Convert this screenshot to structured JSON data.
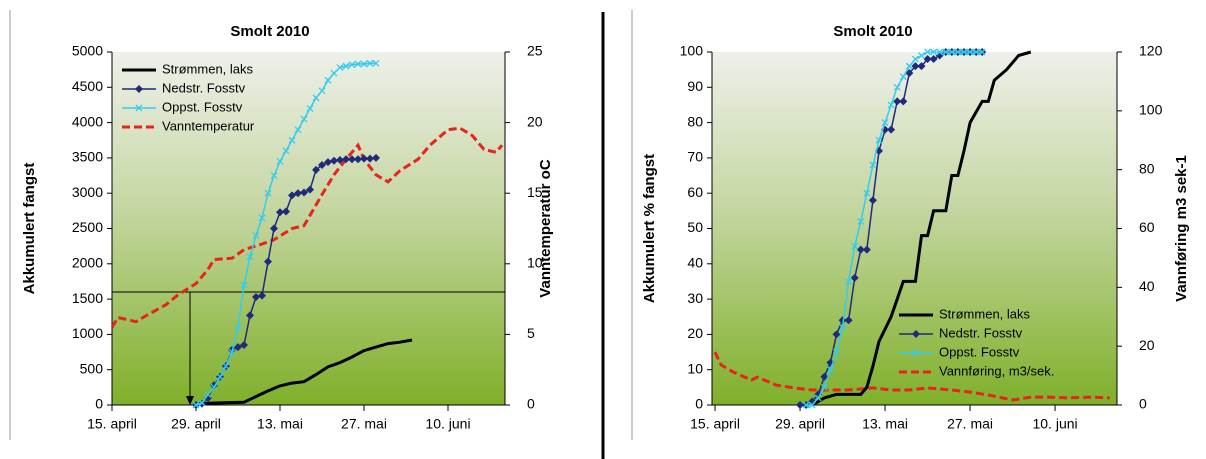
{
  "chart_data": [
    {
      "type": "line",
      "title": "Smolt 2010",
      "ylabel": "Akkumulert fangst",
      "y2label": "Vanntemperatur oC",
      "xlim": [
        0,
        65.5
      ],
      "xticks": [
        {
          "value": 0,
          "label": "15. april"
        },
        {
          "value": 14,
          "label": "29. april"
        },
        {
          "value": 28,
          "label": "13. mai"
        },
        {
          "value": 42,
          "label": "27. mai"
        },
        {
          "value": 56,
          "label": "10. juni"
        }
      ],
      "ylim": [
        0,
        5000
      ],
      "yticks": [
        0,
        500,
        1000,
        1500,
        2000,
        2500,
        3000,
        3500,
        4000,
        4500,
        5000
      ],
      "y2lim": [
        0,
        25
      ],
      "y2ticks": [
        0,
        5,
        10,
        15,
        20,
        25
      ],
      "legend": "upper left",
      "reference_y2": 8,
      "reference_x": 13,
      "series": [
        {
          "name": "Strømmen, laks",
          "color": "#000000",
          "linewidth": 3,
          "marker": "none",
          "dashed": false,
          "x": [
            14,
            18,
            22,
            24,
            26,
            28,
            30,
            32,
            34,
            36,
            38,
            40,
            42,
            44,
            46,
            48,
            50
          ],
          "values": [
            20,
            30,
            40,
            120,
            200,
            270,
            310,
            330,
            430,
            540,
            600,
            680,
            770,
            820,
            870,
            890,
            920
          ]
        },
        {
          "name": "Nedstr. Fosstv",
          "color": "#1f2a7a",
          "linewidth": 1.5,
          "marker": "diamond",
          "dashed": false,
          "x": [
            14,
            15,
            16,
            17,
            18,
            19,
            20,
            21,
            22,
            23,
            24,
            25,
            26,
            27,
            28,
            29,
            30,
            31,
            32,
            33,
            34,
            35,
            36,
            37,
            38,
            39,
            40,
            41,
            42,
            43,
            44
          ],
          "values": [
            0,
            20,
            100,
            280,
            400,
            550,
            780,
            820,
            850,
            1270,
            1530,
            1550,
            2030,
            2500,
            2730,
            2740,
            2970,
            3000,
            3010,
            3050,
            3330,
            3400,
            3440,
            3460,
            3470,
            3480,
            3480,
            3480,
            3490,
            3490,
            3500
          ]
        },
        {
          "name": "Oppst. Fosstv",
          "color": "#33ccee",
          "linewidth": 1.5,
          "marker": "x",
          "dashed": false,
          "x": [
            14,
            15,
            16,
            17,
            18,
            19,
            20,
            21,
            22,
            23,
            24,
            25,
            26,
            27,
            28,
            29,
            30,
            31,
            32,
            33,
            34,
            35,
            36,
            37,
            38,
            39,
            40,
            41,
            42,
            43,
            44
          ],
          "values": [
            0,
            30,
            150,
            250,
            400,
            550,
            750,
            1100,
            1700,
            2100,
            2400,
            2650,
            3000,
            3250,
            3450,
            3600,
            3750,
            3900,
            4050,
            4200,
            4350,
            4450,
            4600,
            4700,
            4780,
            4800,
            4820,
            4830,
            4830,
            4840,
            4840
          ]
        },
        {
          "name": "Vanntemperatur",
          "color": "#e8231c",
          "linewidth": 3,
          "marker": "none",
          "dashed": true,
          "axis": "y2",
          "x": [
            0,
            1,
            4,
            6,
            9,
            11,
            14,
            16,
            17,
            20,
            22,
            25,
            27,
            30,
            32,
            35,
            37,
            39,
            41,
            42,
            44,
            46,
            48,
            51,
            53,
            56,
            58,
            60,
            62,
            64,
            65
          ],
          "values": [
            5.5,
            6.2,
            5.9,
            6.4,
            7.1,
            7.8,
            8.6,
            9.6,
            10.3,
            10.4,
            11.0,
            11.4,
            11.7,
            12.5,
            12.7,
            14.9,
            16.3,
            17.4,
            18.4,
            17.4,
            16.3,
            15.8,
            16.6,
            17.4,
            18.4,
            19.5,
            19.6,
            19.1,
            18.1,
            17.9,
            18.4
          ]
        }
      ]
    },
    {
      "type": "line",
      "title": "Smolt 2010",
      "ylabel": "Akkumulert % fangst",
      "y2label": "Vannføring m3 sek-1",
      "xlim": [
        -0.5,
        66.2
      ],
      "xticks": [
        {
          "value": 0,
          "label": "15. april"
        },
        {
          "value": 14,
          "label": "29. april"
        },
        {
          "value": 28,
          "label": "13. mai"
        },
        {
          "value": 42,
          "label": "27. mai"
        },
        {
          "value": 56,
          "label": "10. juni"
        }
      ],
      "ylim": [
        0,
        100
      ],
      "yticks": [
        0,
        10,
        20,
        30,
        40,
        50,
        60,
        70,
        80,
        90,
        100
      ],
      "y2lim": [
        0,
        120
      ],
      "y2ticks": [
        0,
        20,
        40,
        60,
        80,
        100,
        120
      ],
      "legend": "lower right",
      "series": [
        {
          "name": "Strømmen, laks",
          "color": "#000000",
          "linewidth": 3,
          "marker": "none",
          "dashed": false,
          "x": [
            16,
            18,
            20,
            22,
            24,
            25,
            26,
            27,
            29,
            30,
            31,
            33,
            34,
            35,
            36,
            38,
            39,
            40,
            41,
            42,
            44,
            45,
            46,
            48,
            50,
            52
          ],
          "values": [
            0,
            2,
            3,
            3,
            3,
            5,
            11,
            18,
            25,
            30,
            35,
            35,
            48,
            48,
            55,
            55,
            65,
            65,
            72,
            80,
            86,
            86,
            92,
            95,
            99,
            100
          ]
        },
        {
          "name": "Nedstr. Fosstv",
          "color": "#1f2a7a",
          "linewidth": 1.5,
          "marker": "diamond",
          "dashed": false,
          "x": [
            14,
            15,
            16,
            17,
            18,
            19,
            20,
            21,
            22,
            23,
            24,
            25,
            26,
            27,
            28,
            29,
            30,
            31,
            32,
            33,
            34,
            35,
            36,
            37,
            38,
            39,
            40,
            41,
            42,
            43,
            44
          ],
          "values": [
            0,
            0,
            1,
            3,
            8,
            12,
            20,
            24,
            24,
            36,
            44,
            44,
            58,
            72,
            78,
            78,
            86,
            86,
            94,
            96,
            96,
            98,
            98,
            99,
            100,
            100,
            100,
            100,
            100,
            100,
            100
          ]
        },
        {
          "name": "Oppst. Fosstv",
          "color": "#33ccee",
          "linewidth": 1.5,
          "marker": "x",
          "dashed": false,
          "x": [
            15,
            16,
            17,
            18,
            19,
            20,
            21,
            22,
            23,
            24,
            25,
            26,
            27,
            28,
            29,
            30,
            31,
            32,
            33,
            34,
            35,
            36,
            37,
            38,
            39,
            40,
            41,
            42,
            43,
            44
          ],
          "values": [
            0,
            0,
            2,
            5,
            10,
            15,
            22,
            35,
            45,
            52,
            60,
            68,
            75,
            80,
            85,
            90,
            93,
            96,
            98,
            99,
            100,
            100,
            100,
            100,
            100,
            100,
            100,
            100,
            100,
            100
          ]
        },
        {
          "name": "Vannføring, m3/sek.",
          "color": "#e8231c",
          "linewidth": 3,
          "marker": "none",
          "dashed": true,
          "axis": "y2",
          "x": [
            0,
            1,
            3,
            6,
            7,
            10,
            13,
            16,
            19,
            22,
            26,
            29,
            32,
            35,
            39,
            42,
            45,
            49,
            52,
            55,
            58,
            62,
            65
          ],
          "values": [
            18,
            13.6,
            11.2,
            8.5,
            9.5,
            6.8,
            5.8,
            5.1,
            5.1,
            5.1,
            5.8,
            5.1,
            5.1,
            5.8,
            5.1,
            4.4,
            3.4,
            1.7,
            2.7,
            2.7,
            2.4,
            2.7,
            2.4
          ]
        }
      ]
    }
  ]
}
